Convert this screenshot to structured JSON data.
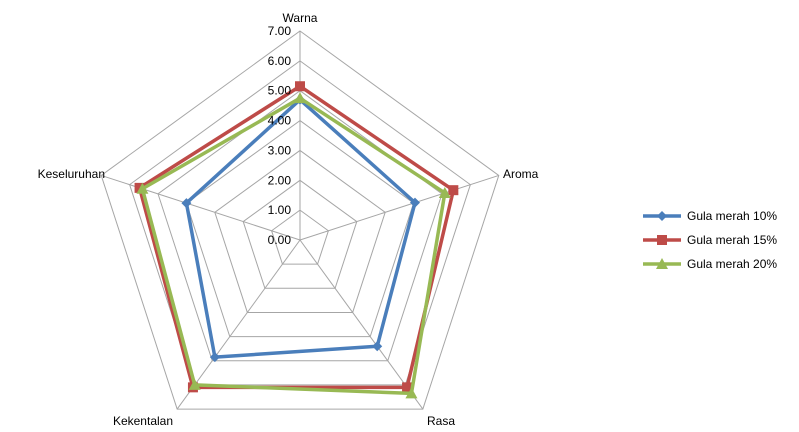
{
  "chart_data": {
    "type": "radar",
    "axes": [
      "Warna",
      "Aroma",
      "Rasa",
      "Kekentalan",
      "Keseluruhan"
    ],
    "ticks": [
      "0.00",
      "1.00",
      "2.00",
      "3.00",
      "4.00",
      "5.00",
      "6.00",
      "7.00"
    ],
    "rlim": [
      0,
      7
    ],
    "grid": true,
    "legend_position": "right",
    "series": [
      {
        "name": "Gula merah 10%",
        "values": [
          4.7,
          4.05,
          4.4,
          4.85,
          4.0
        ],
        "color": "#4A7EBB",
        "marker": "diamond"
      },
      {
        "name": "Gula merah 15%",
        "values": [
          5.15,
          5.4,
          6.1,
          6.1,
          5.65
        ],
        "color": "#BE4B48",
        "marker": "square"
      },
      {
        "name": "Gula merah 20%",
        "values": [
          4.75,
          5.1,
          6.35,
          6.0,
          5.55
        ],
        "color": "#98B954",
        "marker": "triangle"
      }
    ]
  }
}
